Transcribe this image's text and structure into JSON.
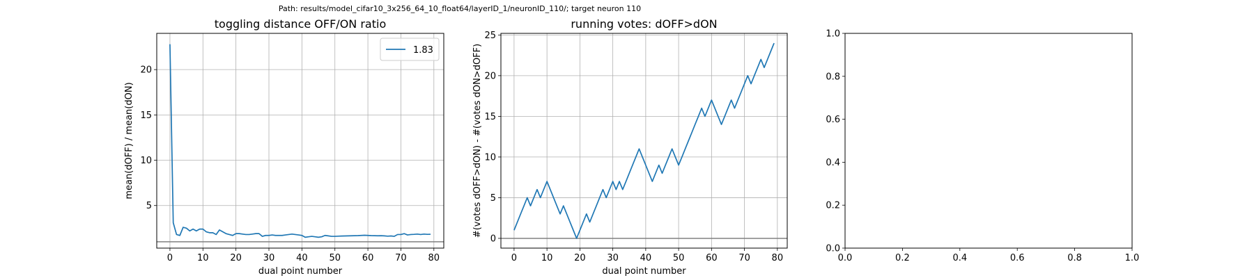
{
  "suptitle": "Path: results/model_cifar10_3x256_64_10_float64/layerID_1/neuronID_110/; target neuron 110",
  "chart_data": [
    {
      "type": "line",
      "title": "toggling distance OFF/ON ratio",
      "xlabel": "dual point number",
      "ylabel": "mean(dOFF) / mean(dON)",
      "xlim": [
        -4,
        83
      ],
      "ylim": [
        0.3,
        24
      ],
      "xticks": [
        0,
        10,
        20,
        30,
        40,
        50,
        60,
        70,
        80
      ],
      "yticks": [
        5,
        10,
        15,
        20
      ],
      "grid": true,
      "legend": {
        "entries": [
          "1.83"
        ],
        "placement": "top-right"
      },
      "hline": 1,
      "series": [
        {
          "name": "1.83",
          "color": "#1f77b4",
          "x": [
            0,
            1,
            2,
            3,
            4,
            5,
            6,
            7,
            8,
            9,
            10,
            11,
            12,
            13,
            14,
            15,
            16,
            17,
            18,
            19,
            20,
            21,
            22,
            23,
            24,
            25,
            26,
            27,
            28,
            29,
            30,
            31,
            32,
            33,
            34,
            35,
            36,
            37,
            38,
            39,
            40,
            41,
            42,
            43,
            44,
            45,
            46,
            47,
            48,
            49,
            50,
            51,
            52,
            53,
            54,
            55,
            56,
            57,
            58,
            59,
            60,
            61,
            62,
            63,
            64,
            65,
            66,
            67,
            68,
            69,
            70,
            71,
            72,
            73,
            74,
            75,
            76,
            77,
            78,
            79
          ],
          "y": [
            22.8,
            3.1,
            1.8,
            1.7,
            2.6,
            2.5,
            2.2,
            2.4,
            2.2,
            2.4,
            2.4,
            2.1,
            2.0,
            2.0,
            1.8,
            2.3,
            2.1,
            1.9,
            1.8,
            1.7,
            1.9,
            1.9,
            1.85,
            1.8,
            1.8,
            1.85,
            1.9,
            1.9,
            1.6,
            1.7,
            1.7,
            1.75,
            1.7,
            1.7,
            1.7,
            1.75,
            1.8,
            1.85,
            1.8,
            1.75,
            1.7,
            1.5,
            1.55,
            1.6,
            1.55,
            1.5,
            1.55,
            1.7,
            1.65,
            1.6,
            1.6,
            1.62,
            1.63,
            1.64,
            1.65,
            1.66,
            1.67,
            1.68,
            1.7,
            1.72,
            1.7,
            1.68,
            1.67,
            1.66,
            1.67,
            1.65,
            1.62,
            1.64,
            1.6,
            1.8,
            1.8,
            1.9,
            1.75,
            1.8,
            1.82,
            1.85,
            1.8,
            1.85,
            1.82,
            1.83
          ]
        }
      ]
    },
    {
      "type": "line",
      "title": "running votes: dOFF>dON",
      "xlabel": "dual point number",
      "ylabel": "#(votes dOFF>dON) - #(votes dON>dOFF)",
      "xlim": [
        -4,
        83
      ],
      "ylim": [
        -1.2,
        25.2
      ],
      "xticks": [
        0,
        10,
        20,
        30,
        40,
        50,
        60,
        70,
        80
      ],
      "yticks": [
        0,
        5,
        10,
        15,
        20,
        25
      ],
      "grid": true,
      "hline": 0,
      "series": [
        {
          "color": "#1f77b4",
          "x": [
            0,
            1,
            2,
            3,
            4,
            5,
            6,
            7,
            8,
            9,
            10,
            11,
            12,
            13,
            14,
            15,
            16,
            17,
            18,
            19,
            20,
            21,
            22,
            23,
            24,
            25,
            26,
            27,
            28,
            29,
            30,
            31,
            32,
            33,
            34,
            35,
            36,
            37,
            38,
            39,
            40,
            41,
            42,
            43,
            44,
            45,
            46,
            47,
            48,
            49,
            50,
            51,
            52,
            53,
            54,
            55,
            56,
            57,
            58,
            59,
            60,
            61,
            62,
            63,
            64,
            65,
            66,
            67,
            68,
            69,
            70,
            71,
            72,
            73,
            74,
            75,
            76,
            77,
            78,
            79
          ],
          "y": [
            1,
            2,
            3,
            4,
            5,
            4,
            5,
            6,
            5,
            6,
            7,
            6,
            5,
            4,
            3,
            4,
            3,
            2,
            1,
            0,
            1,
            2,
            3,
            2,
            3,
            4,
            5,
            6,
            5,
            6,
            7,
            6,
            7,
            6,
            7,
            8,
            9,
            10,
            11,
            10,
            9,
            8,
            7,
            8,
            9,
            8,
            9,
            10,
            11,
            10,
            9,
            10,
            11,
            12,
            13,
            14,
            15,
            16,
            15,
            16,
            17,
            16,
            15,
            14,
            15,
            16,
            17,
            16,
            17,
            18,
            19,
            20,
            19,
            20,
            21,
            22,
            21,
            22,
            23,
            24
          ]
        }
      ]
    },
    {
      "type": "line",
      "title": "",
      "xlabel": "",
      "ylabel": "",
      "xlim": [
        0,
        1
      ],
      "ylim": [
        0,
        1
      ],
      "xticks": [
        0.0,
        0.2,
        0.4,
        0.6,
        0.8,
        1.0
      ],
      "yticks": [
        0.0,
        0.2,
        0.4,
        0.6,
        0.8,
        1.0
      ],
      "xtick_labels": [
        "0.0",
        "0.2",
        "0.4",
        "0.6",
        "0.8",
        "1.0"
      ],
      "ytick_labels": [
        "0.0",
        "0.2",
        "0.4",
        "0.6",
        "0.8",
        "1.0"
      ],
      "grid": false,
      "series": []
    }
  ]
}
